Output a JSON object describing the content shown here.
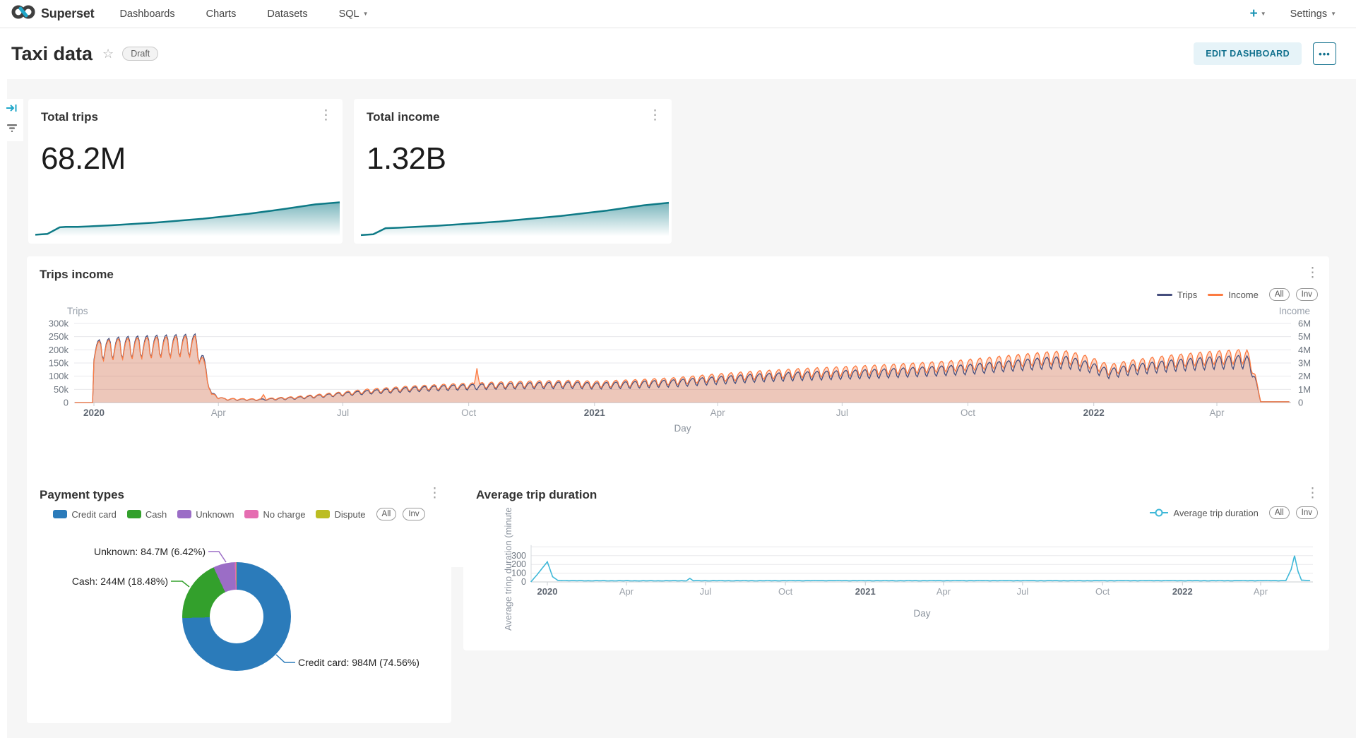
{
  "navbar": {
    "brand": "Superset",
    "items": [
      {
        "label": "Dashboards",
        "caret": false
      },
      {
        "label": "Charts",
        "caret": false
      },
      {
        "label": "Datasets",
        "caret": false
      },
      {
        "label": "SQL",
        "caret": true
      }
    ],
    "plus_label": "+",
    "settings_label": "Settings"
  },
  "header": {
    "title": "Taxi data",
    "badge": "Draft",
    "edit_button": "EDIT DASHBOARD",
    "more_button": "•••"
  },
  "colors": {
    "accent": "#20a7c9",
    "accent_dark": "#12718e",
    "spark": "#0e7a86",
    "trips_line": "#454e7d",
    "income_line": "#fc7b42",
    "duration_line": "#3fb8d8",
    "grid": "#e8e8ec",
    "axis_text": "#6e7680",
    "axis_text_light": "#9aa0a8",
    "page_bg": "#f6f6f6"
  },
  "cards": {
    "total_trips": {
      "title": "Total trips",
      "value": "68.2M"
    },
    "total_income": {
      "title": "Total income",
      "value": "1.32B"
    }
  },
  "chart_data": [
    {
      "id": "total-trips-spark",
      "type": "area",
      "title": "Total trips",
      "value": "68.2M",
      "note": "cumulative trend sparkline, normalized 0-1",
      "points": [
        [
          0,
          0.08
        ],
        [
          0.04,
          0.1
        ],
        [
          0.08,
          0.26
        ],
        [
          0.1,
          0.27
        ],
        [
          0.14,
          0.27
        ],
        [
          0.25,
          0.31
        ],
        [
          0.4,
          0.38
        ],
        [
          0.55,
          0.47
        ],
        [
          0.7,
          0.59
        ],
        [
          0.82,
          0.71
        ],
        [
          0.92,
          0.82
        ],
        [
          1.0,
          0.87
        ]
      ]
    },
    {
      "id": "total-income-spark",
      "type": "area",
      "title": "Total income",
      "value": "1.32B",
      "note": "cumulative trend sparkline, normalized 0-1",
      "points": [
        [
          0,
          0.07
        ],
        [
          0.04,
          0.09
        ],
        [
          0.08,
          0.24
        ],
        [
          0.12,
          0.25
        ],
        [
          0.25,
          0.3
        ],
        [
          0.45,
          0.4
        ],
        [
          0.65,
          0.54
        ],
        [
          0.8,
          0.67
        ],
        [
          0.92,
          0.8
        ],
        [
          1.0,
          0.86
        ]
      ]
    },
    {
      "id": "trips-income",
      "type": "line",
      "title": "Trips income",
      "xlabel": "Day",
      "legend_buttons": [
        "All",
        "Inv"
      ],
      "x_ticks": [
        {
          "label": "2020",
          "day": 0,
          "strong": true
        },
        {
          "label": "Apr",
          "day": 91,
          "strong": false
        },
        {
          "label": "Jul",
          "day": 182,
          "strong": false
        },
        {
          "label": "Oct",
          "day": 274,
          "strong": false
        },
        {
          "label": "2021",
          "day": 366,
          "strong": true
        },
        {
          "label": "Apr",
          "day": 456,
          "strong": false
        },
        {
          "label": "Jul",
          "day": 547,
          "strong": false
        },
        {
          "label": "Oct",
          "day": 639,
          "strong": false
        },
        {
          "label": "2022",
          "day": 731,
          "strong": true
        },
        {
          "label": "Apr",
          "day": 821,
          "strong": false
        }
      ],
      "y_left": {
        "name": "Trips",
        "ticks": [
          {
            "label": "300k",
            "v": 300
          },
          {
            "label": "250k",
            "v": 250
          },
          {
            "label": "200k",
            "v": 200
          },
          {
            "label": "150k",
            "v": 150
          },
          {
            "label": "100k",
            "v": 100
          },
          {
            "label": "50k",
            "v": 50
          },
          {
            "label": "0",
            "v": 0
          }
        ],
        "max": 300
      },
      "y_right": {
        "name": "Income",
        "ticks": [
          {
            "label": "6M",
            "v": 6
          },
          {
            "label": "5M",
            "v": 5
          },
          {
            "label": "4M",
            "v": 4
          },
          {
            "label": "3M",
            "v": 3
          },
          {
            "label": "2M",
            "v": 2
          },
          {
            "label": "1M",
            "v": 1
          },
          {
            "label": "0",
            "v": 0
          }
        ],
        "max": 6
      },
      "series": [
        {
          "name": "Trips",
          "axis": "left",
          "unit": "thousand trips/day",
          "control": [
            [
              -14,
              0,
              0
            ],
            [
              -1,
              0,
              0
            ],
            [
              0,
              195,
              40
            ],
            [
              20,
              205,
              45
            ],
            [
              45,
              210,
              45
            ],
            [
              74,
              215,
              45
            ],
            [
              80,
              150,
              30
            ],
            [
              86,
              30,
              8
            ],
            [
              95,
              12,
              4
            ],
            [
              120,
              10,
              3
            ],
            [
              150,
              17,
              5
            ],
            [
              180,
              30,
              7
            ],
            [
              200,
              38,
              8
            ],
            [
              230,
              48,
              10
            ],
            [
              260,
              55,
              11
            ],
            [
              290,
              60,
              12
            ],
            [
              320,
              63,
              13
            ],
            [
              350,
              65,
              14
            ],
            [
              366,
              62,
              13
            ],
            [
              395,
              66,
              14
            ],
            [
              425,
              72,
              15
            ],
            [
              455,
              82,
              16
            ],
            [
              485,
              92,
              17
            ],
            [
              515,
              98,
              18
            ],
            [
              545,
              103,
              18
            ],
            [
              575,
              108,
              19
            ],
            [
              605,
              115,
              20
            ],
            [
              635,
              122,
              21
            ],
            [
              665,
              135,
              22
            ],
            [
              695,
              147,
              24
            ],
            [
              712,
              150,
              26
            ],
            [
              728,
              132,
              22
            ],
            [
              742,
              108,
              20
            ],
            [
              758,
              122,
              22
            ],
            [
              788,
              138,
              24
            ],
            [
              818,
              148,
              26
            ],
            [
              843,
              152,
              28
            ],
            [
              849,
              90,
              10
            ],
            [
              853,
              3,
              0
            ],
            [
              874,
              3,
              0
            ]
          ],
          "spikes": []
        },
        {
          "name": "Income",
          "axis": "right",
          "unit": "million $/day",
          "control": [
            [
              -14,
              0,
              0
            ],
            [
              -1,
              0,
              0
            ],
            [
              0,
              3.8,
              0.8
            ],
            [
              20,
              4.0,
              0.85
            ],
            [
              45,
              4.1,
              0.85
            ],
            [
              74,
              4.2,
              0.85
            ],
            [
              80,
              2.9,
              0.5
            ],
            [
              86,
              0.55,
              0.15
            ],
            [
              95,
              0.25,
              0.07
            ],
            [
              120,
              0.22,
              0.06
            ],
            [
              150,
              0.38,
              0.1
            ],
            [
              180,
              0.65,
              0.15
            ],
            [
              200,
              0.85,
              0.18
            ],
            [
              230,
              1.05,
              0.2
            ],
            [
              260,
              1.2,
              0.22
            ],
            [
              290,
              1.3,
              0.25
            ],
            [
              320,
              1.38,
              0.27
            ],
            [
              350,
              1.42,
              0.28
            ],
            [
              366,
              1.36,
              0.27
            ],
            [
              395,
              1.45,
              0.29
            ],
            [
              425,
              1.6,
              0.3
            ],
            [
              455,
              1.85,
              0.33
            ],
            [
              485,
              2.05,
              0.36
            ],
            [
              515,
              2.2,
              0.38
            ],
            [
              545,
              2.32,
              0.4
            ],
            [
              575,
              2.45,
              0.42
            ],
            [
              605,
              2.6,
              0.44
            ],
            [
              635,
              2.78,
              0.46
            ],
            [
              665,
              3.05,
              0.5
            ],
            [
              695,
              3.3,
              0.54
            ],
            [
              712,
              3.38,
              0.56
            ],
            [
              728,
              3.0,
              0.5
            ],
            [
              742,
              2.45,
              0.44
            ],
            [
              758,
              2.75,
              0.48
            ],
            [
              788,
              3.1,
              0.52
            ],
            [
              818,
              3.35,
              0.56
            ],
            [
              843,
              3.45,
              0.6
            ],
            [
              849,
              2.0,
              0.2
            ],
            [
              853,
              0.06,
              0
            ],
            [
              874,
              0.06,
              0
            ]
          ],
          "spikes": [
            [
              124,
              0.6
            ],
            [
              280,
              2.6
            ]
          ]
        }
      ]
    },
    {
      "id": "payment-types",
      "type": "pie",
      "title": "Payment types",
      "legend_buttons": [
        "All",
        "Inv"
      ],
      "slices": [
        {
          "label": "Credit card",
          "value": "984M",
          "pct": 74.56,
          "color": "#2b7bba"
        },
        {
          "label": "Cash",
          "value": "244M",
          "pct": 18.48,
          "color": "#33a02c"
        },
        {
          "label": "Unknown",
          "value": "84.7M",
          "pct": 6.42,
          "color": "#9b6dc6"
        },
        {
          "label": "No charge",
          "value": null,
          "pct": 0.45,
          "color": "#e56db1"
        },
        {
          "label": "Dispute",
          "value": null,
          "pct": 0.09,
          "color": "#bcbd22"
        }
      ],
      "callouts": [
        {
          "text": "Credit card: 984M (74.56%)"
        },
        {
          "text": "Cash: 244M (18.48%)"
        },
        {
          "text": "Unknown: 84.7M (6.42%)"
        }
      ]
    },
    {
      "id": "avg-trip-duration",
      "type": "line",
      "title": "Average trip duration",
      "ylabel": "Average trinp duration (minute",
      "xlabel": "Day",
      "legend_buttons": [
        "All",
        "Inv"
      ],
      "legend_series": "Average trip duration",
      "y_ticks": [
        {
          "label": "0",
          "v": 0
        },
        {
          "label": "100",
          "v": 100
        },
        {
          "label": "200",
          "v": 200
        },
        {
          "label": "300",
          "v": 300
        }
      ],
      "x_ticks": [
        {
          "label": "2020",
          "day": 0,
          "strong": true
        },
        {
          "label": "Apr",
          "day": 91,
          "strong": false
        },
        {
          "label": "Jul",
          "day": 182,
          "strong": false
        },
        {
          "label": "Oct",
          "day": 274,
          "strong": false
        },
        {
          "label": "2021",
          "day": 366,
          "strong": true
        },
        {
          "label": "Apr",
          "day": 456,
          "strong": false
        },
        {
          "label": "Jul",
          "day": 547,
          "strong": false
        },
        {
          "label": "Oct",
          "day": 639,
          "strong": false
        },
        {
          "label": "2022",
          "day": 731,
          "strong": true
        },
        {
          "label": "Apr",
          "day": 821,
          "strong": false
        }
      ],
      "series": [
        {
          "name": "Average trip duration",
          "unit": "minute",
          "control": [
            [
              -19,
              0
            ],
            [
              -12,
              80
            ],
            [
              0,
              230
            ],
            [
              6,
              60
            ],
            [
              12,
              18
            ],
            [
              30,
              14
            ],
            [
              120,
              13
            ],
            [
              160,
              14
            ],
            [
              164,
              40
            ],
            [
              168,
              14
            ],
            [
              250,
              14
            ],
            [
              320,
              15
            ],
            [
              400,
              14
            ],
            [
              500,
              15
            ],
            [
              600,
              14
            ],
            [
              700,
              15
            ],
            [
              760,
              14
            ],
            [
              820,
              15
            ],
            [
              850,
              15
            ],
            [
              856,
              140
            ],
            [
              860,
              300
            ],
            [
              864,
              120
            ],
            [
              868,
              20
            ],
            [
              878,
              16
            ]
          ]
        }
      ]
    }
  ]
}
